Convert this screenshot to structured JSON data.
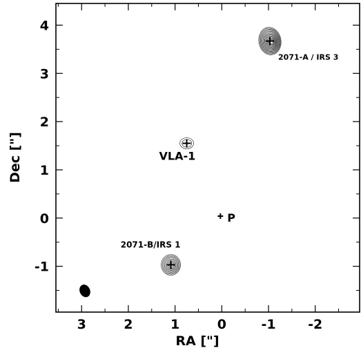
{
  "chart_data": {
    "type": "scatter",
    "title": "",
    "xlabel": "RA [\"]",
    "ylabel": "Dec [\"]",
    "xlim": [
      3.55,
      -2.95
    ],
    "ylim": [
      -1.95,
      4.45
    ],
    "xticks": [
      3,
      2,
      1,
      0,
      -1,
      -2
    ],
    "yticks": [
      4,
      3,
      2,
      1,
      0,
      -1
    ],
    "x_tick_labels": [
      "3",
      "2",
      "1",
      "0",
      "-1",
      "-2"
    ],
    "y_tick_labels": [
      "4",
      "3",
      "2",
      "1",
      "0",
      "-1"
    ],
    "grid": false,
    "sources": [
      {
        "name": "2071-A / IRS 3",
        "x": -1.03,
        "y": 3.67,
        "kind": "strong"
      },
      {
        "name": "VLA-1",
        "x": 0.75,
        "y": 1.55,
        "kind": "weak"
      },
      {
        "name": "2071-B/IRS 1",
        "x": 1.09,
        "y": -0.97,
        "kind": "medium"
      },
      {
        "name": "P",
        "x": 0.03,
        "y": 0.04,
        "kind": "marker"
      }
    ],
    "beam": {
      "x": 2.93,
      "y": -1.51,
      "major": 0.27,
      "minor": 0.22
    }
  }
}
